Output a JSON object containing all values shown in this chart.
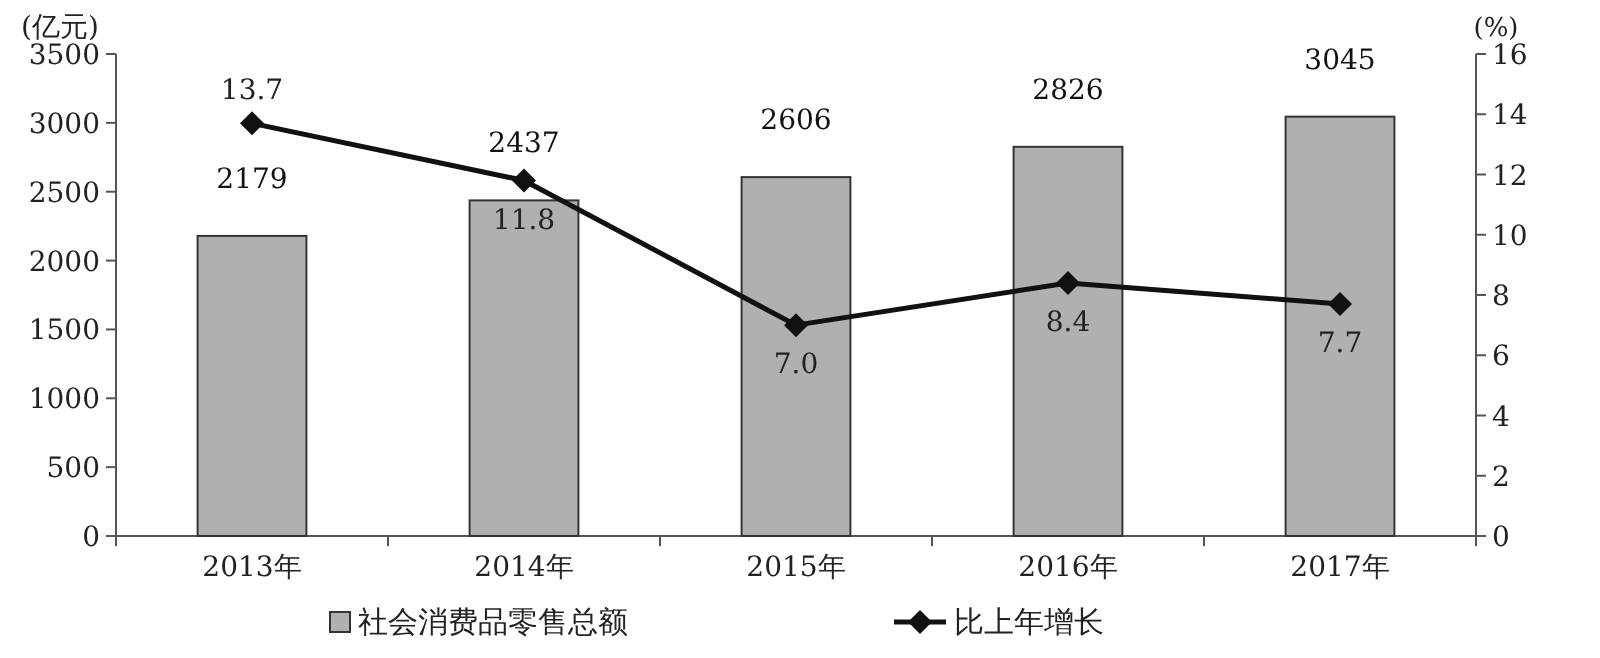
{
  "chart_data": {
    "type": "bar",
    "ylabel": "(亿元)",
    "y2label": "(%)",
    "categories": [
      "2013年",
      "2014年",
      "2015年",
      "2016年",
      "2017年"
    ],
    "series": [
      {
        "name": "社会消费品零售总额",
        "color": "#b0b0b0",
        "values": [
          2179,
          2437,
          2606,
          2826,
          3045
        ]
      },
      {
        "name": "比上年增长",
        "type": "line",
        "axis": "y2",
        "color": "#111111",
        "marker": "diamond",
        "values": [
          13.7,
          11.8,
          7.0,
          8.4,
          7.7
        ],
        "value_labels": [
          "13.7",
          "11.8",
          "7.0",
          "8.4",
          "7.7"
        ]
      }
    ],
    "ylim": [
      0,
      3500
    ],
    "yticks": [
      0,
      500,
      1000,
      1500,
      2000,
      2500,
      3000,
      3500
    ],
    "y2lim": [
      0,
      16
    ],
    "y2ticks": [
      0,
      2,
      4,
      6,
      8,
      10,
      12,
      14,
      16
    ],
    "data_labels": true,
    "legend": "bottom",
    "grid": false
  }
}
